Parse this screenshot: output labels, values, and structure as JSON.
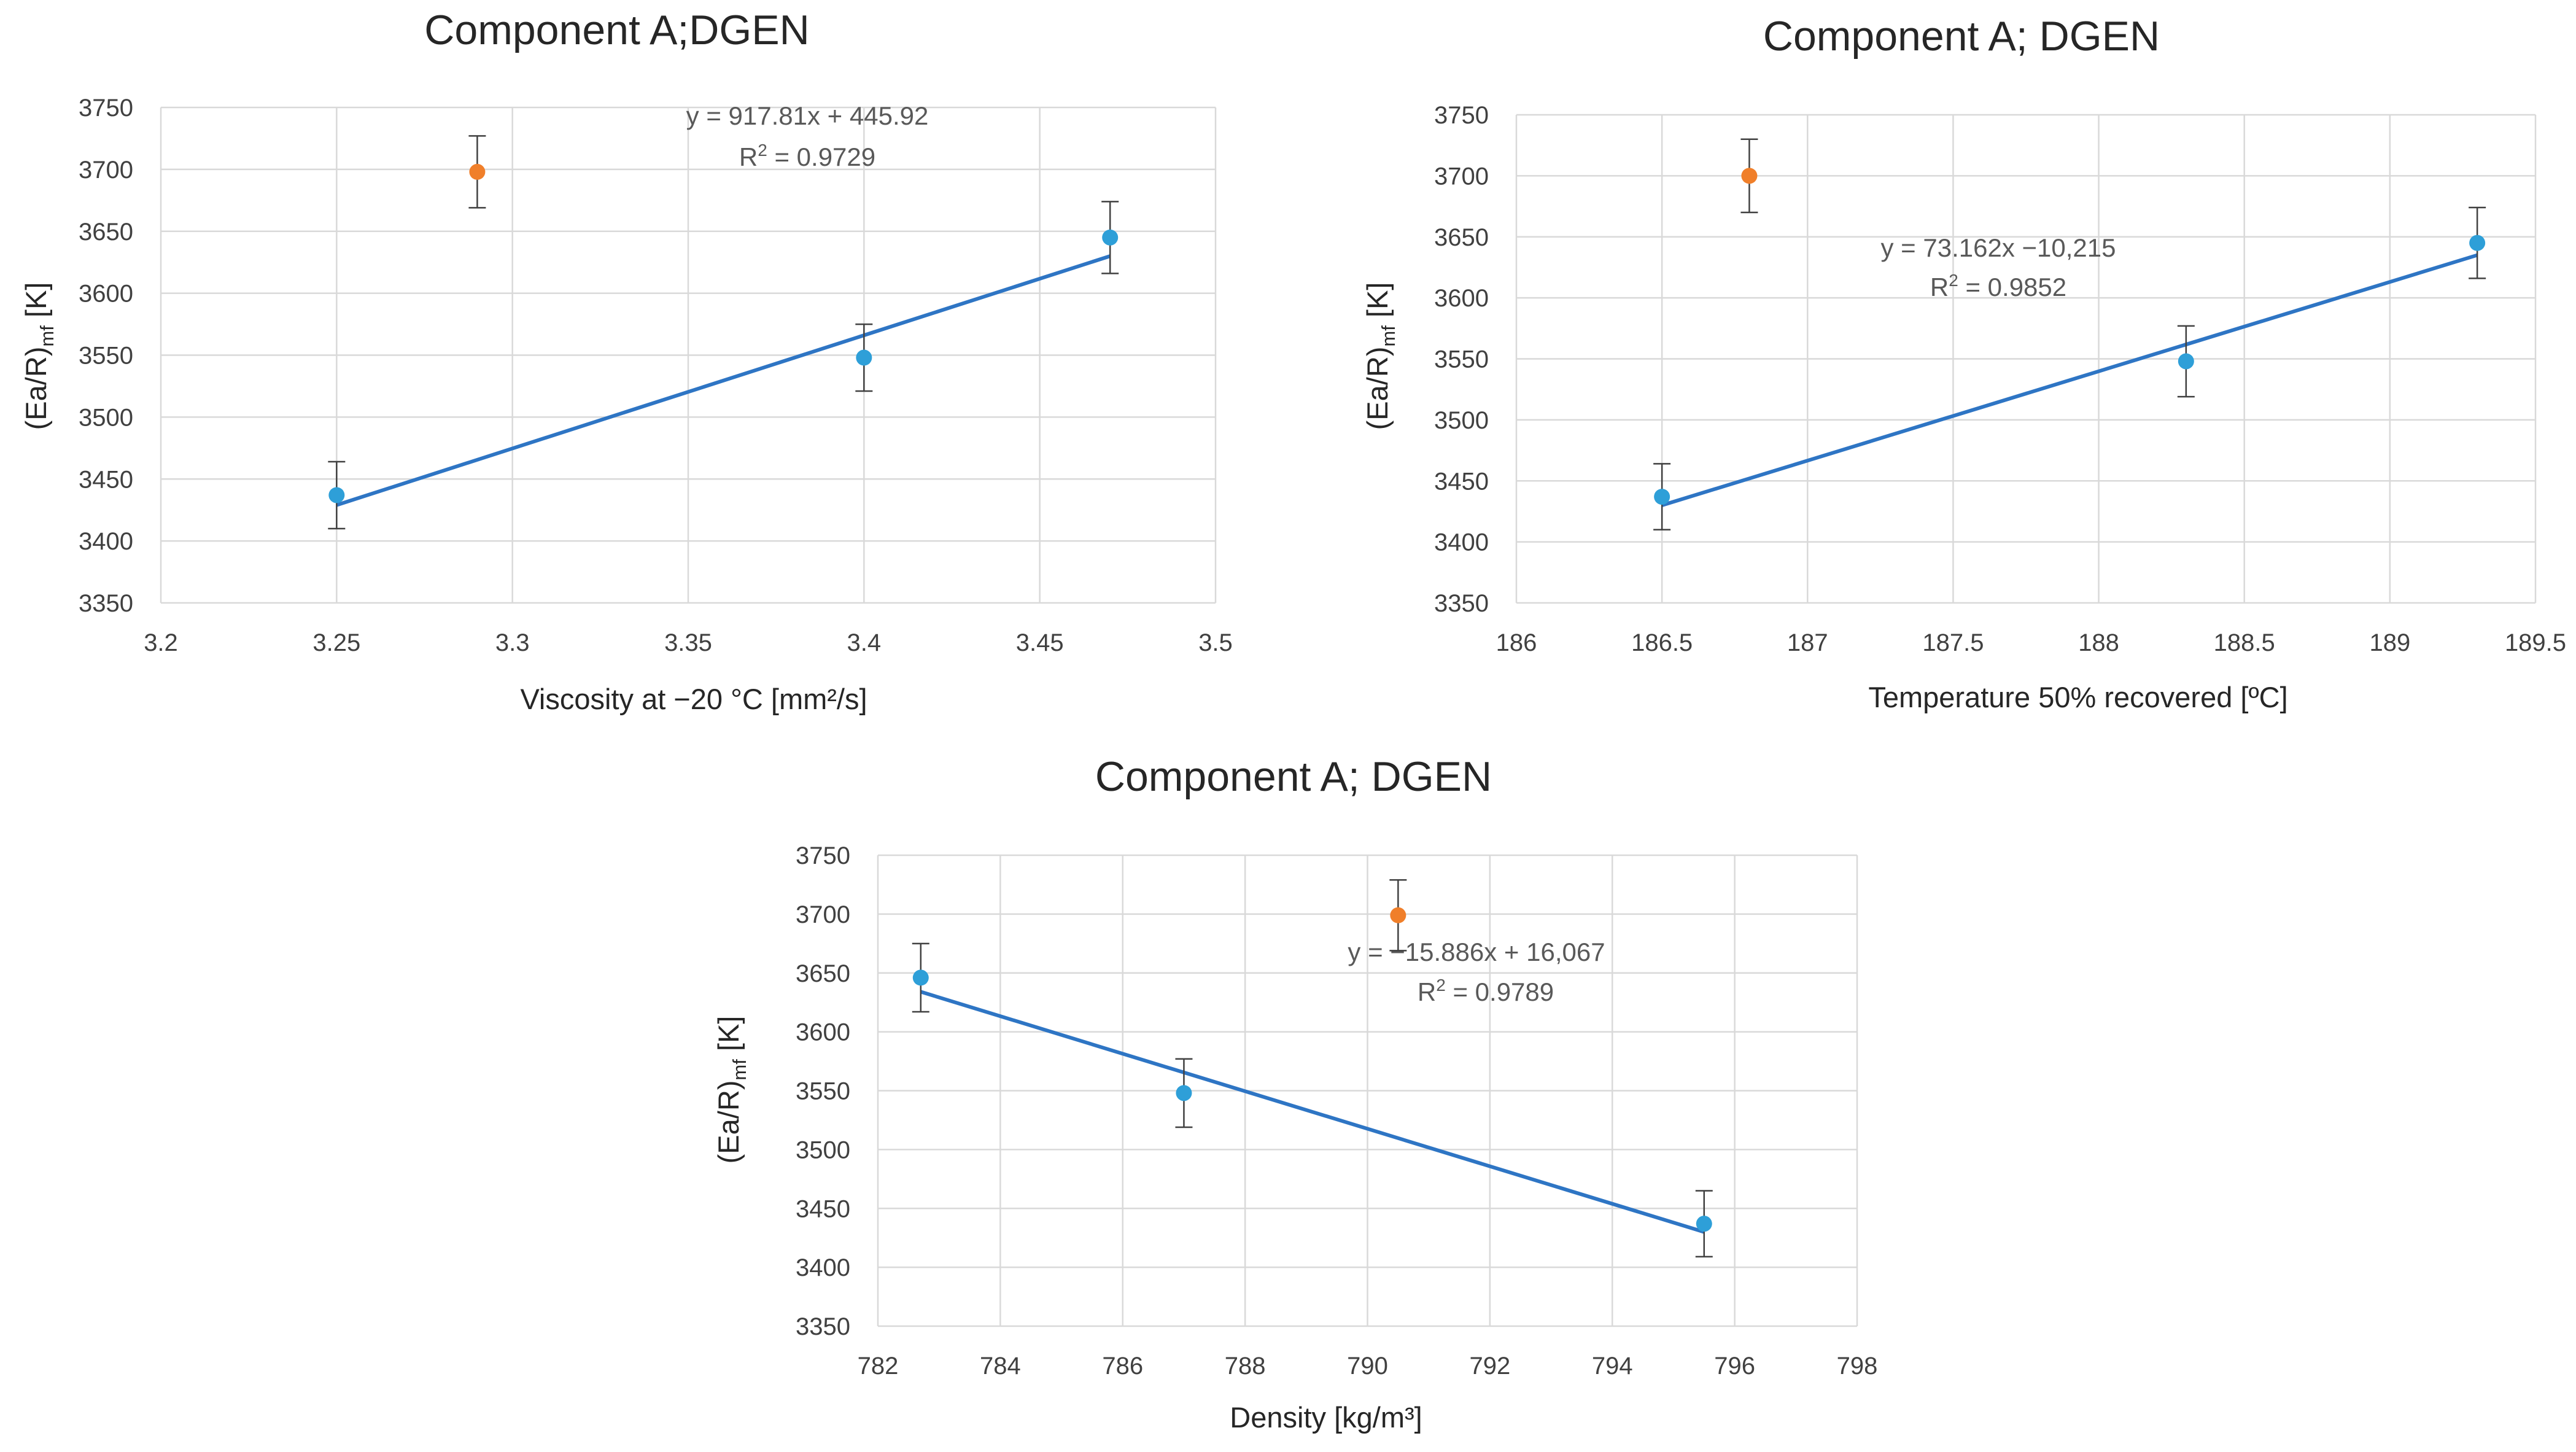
{
  "chart_data": [
    {
      "type": "scatter",
      "title": "Component A;DGEN",
      "xlabel": "Viscosity at −20 °C [mm²/s]",
      "ylabel_main": "(Ea/R)",
      "ylabel_sub": "mf",
      "ylabel_unit": " [K]",
      "xlim": [
        3.2,
        3.5
      ],
      "ylim": [
        3350,
        3750
      ],
      "x_ticks": [
        "3.2",
        "3.25",
        "3.3",
        "3.35",
        "3.4",
        "3.45",
        "3.5"
      ],
      "y_ticks": [
        "3350",
        "3400",
        "3450",
        "3500",
        "3550",
        "3600",
        "3650",
        "3700",
        "3750"
      ],
      "grid": true,
      "series": [
        {
          "color": "#2e9fd8",
          "points": [
            {
              "x": 3.25,
              "y": 3437,
              "err": 27
            },
            {
              "x": 3.4,
              "y": 3548,
              "err": 27
            },
            {
              "x": 3.47,
              "y": 3645,
              "err": 29
            }
          ]
        },
        {
          "color": "#f07f2a",
          "points": [
            {
              "x": 3.29,
              "y": 3698,
              "err": 29
            }
          ]
        }
      ],
      "trendline": {
        "color": "#2e75c4",
        "x": [
          3.25,
          3.47
        ],
        "y": [
          3429,
          3630
        ]
      },
      "equation": "y = 917.81x + 445.92",
      "r2_label": "R",
      "r2_value": " = 0.9729"
    },
    {
      "type": "scatter",
      "title": "Component A; DGEN",
      "xlabel": "Temperature 50% recovered [ºC]",
      "ylabel_main": "(Ea/R)",
      "ylabel_sub": "mf",
      "ylabel_unit": " [K]",
      "xlim": [
        186,
        189.5
      ],
      "ylim": [
        3350,
        3750
      ],
      "x_ticks": [
        "186",
        "186.5",
        "187",
        "187.5",
        "188",
        "188.5",
        "189",
        "189.5"
      ],
      "y_ticks": [
        "3350",
        "3400",
        "3450",
        "3500",
        "3550",
        "3600",
        "3650",
        "3700",
        "3750"
      ],
      "grid": true,
      "series": [
        {
          "color": "#2e9fd8",
          "points": [
            {
              "x": 186.5,
              "y": 3437,
              "err": 27
            },
            {
              "x": 188.3,
              "y": 3548,
              "err": 29
            },
            {
              "x": 189.3,
              "y": 3645,
              "err": 29
            }
          ]
        },
        {
          "color": "#f07f2a",
          "points": [
            {
              "x": 186.8,
              "y": 3700,
              "err": 30
            }
          ]
        }
      ],
      "trendline": {
        "color": "#2e75c4",
        "x": [
          186.5,
          189.3
        ],
        "y": [
          3430,
          3635
        ]
      },
      "equation": "y = 73.162x −10,215",
      "r2_label": "R",
      "r2_value": " = 0.9852"
    },
    {
      "type": "scatter",
      "title": "Component A; DGEN",
      "xlabel": "Density [kg/m³]",
      "ylabel_main": "(Ea/R)",
      "ylabel_sub": "mf",
      "ylabel_unit": " [K]",
      "xlim": [
        782,
        798
      ],
      "ylim": [
        3350,
        3750
      ],
      "x_ticks": [
        "782",
        "784",
        "786",
        "788",
        "790",
        "792",
        "794",
        "796",
        "798"
      ],
      "y_ticks": [
        "3350",
        "3400",
        "3450",
        "3500",
        "3550",
        "3600",
        "3650",
        "3700",
        "3750"
      ],
      "grid": true,
      "series": [
        {
          "color": "#2e9fd8",
          "points": [
            {
              "x": 782.7,
              "y": 3646,
              "err": 29
            },
            {
              "x": 787,
              "y": 3548,
              "err": 29
            },
            {
              "x": 795.5,
              "y": 3437,
              "err": 28
            }
          ]
        },
        {
          "color": "#f07f2a",
          "points": [
            {
              "x": 790.5,
              "y": 3699,
              "err": 30
            }
          ]
        }
      ],
      "trendline": {
        "color": "#2e75c4",
        "x": [
          782.7,
          795.5
        ],
        "y": [
          3634,
          3430
        ]
      },
      "equation": "y = −15.886x + 16,067",
      "r2_label": "R",
      "r2_value": " = 0.9789"
    }
  ],
  "style": {
    "grid_color": "#d9d9d9",
    "errorbar_color": "#404040",
    "sup_two": "2"
  }
}
